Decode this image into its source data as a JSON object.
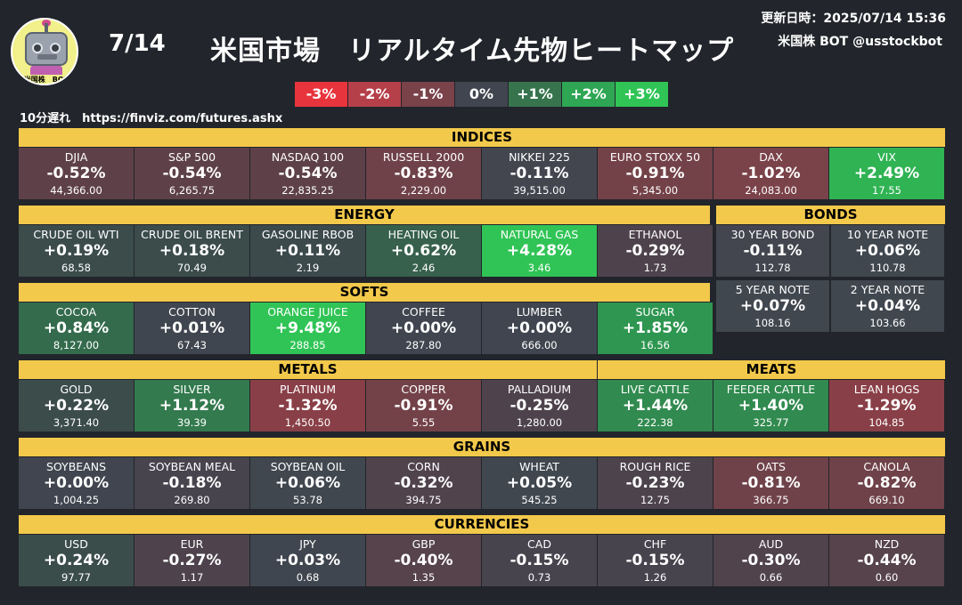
{
  "header": {
    "date": "7/14",
    "title": "米国市場　リアルタイム先物ヒートマップ",
    "updated": "更新日時：2025/07/14 15:36",
    "account": "米国株 BOT @usstockbot",
    "delay_note": "10分遅れ　https://finviz.com/futures.ashx",
    "logo_text": "米国株　BOT"
  },
  "legend": [
    {
      "label": "-3%",
      "color": "#e8343c"
    },
    {
      "label": "-2%",
      "color": "#b5404a"
    },
    {
      "label": "-1%",
      "color": "#7a4249"
    },
    {
      "label": "0%",
      "color": "#40454f"
    },
    {
      "label": "+1%",
      "color": "#37744e"
    },
    {
      "label": "+2%",
      "color": "#2ea653"
    },
    {
      "label": "+3%",
      "color": "#30c456"
    }
  ],
  "sections": {
    "indices": {
      "title": "INDICES",
      "items": [
        {
          "name": "DJIA",
          "change": "-0.52%",
          "price": "44,366.00",
          "color": "#5e4148"
        },
        {
          "name": "S&P 500",
          "change": "-0.54%",
          "price": "6,265.75",
          "color": "#5e4148"
        },
        {
          "name": "NASDAQ 100",
          "change": "-0.54%",
          "price": "22,835.25",
          "color": "#5e4148"
        },
        {
          "name": "RUSSELL 2000",
          "change": "-0.83%",
          "price": "2,229.00",
          "color": "#6f4249"
        },
        {
          "name": "NIKKEI 225",
          "change": "-0.11%",
          "price": "39,515.00",
          "color": "#43454f"
        },
        {
          "name": "EURO STOXX 50",
          "change": "-0.91%",
          "price": "5,345.00",
          "color": "#734248"
        },
        {
          "name": "DAX",
          "change": "-1.02%",
          "price": "24,083.00",
          "color": "#7a4249"
        },
        {
          "name": "VIX",
          "change": "+2.49%",
          "price": "17.55",
          "color": "#2fb353"
        }
      ]
    },
    "energy": {
      "title": "ENERGY",
      "items": [
        {
          "name": "CRUDE OIL WTI",
          "change": "+0.19%",
          "price": "68.58",
          "color": "#3b4c4b"
        },
        {
          "name": "CRUDE OIL BRENT",
          "change": "+0.18%",
          "price": "70.49",
          "color": "#3b4c4b"
        },
        {
          "name": "GASOLINE RBOB",
          "change": "+0.11%",
          "price": "2.19",
          "color": "#3c4a4c"
        },
        {
          "name": "HEATING OIL",
          "change": "+0.62%",
          "price": "2.46",
          "color": "#37604d"
        },
        {
          "name": "NATURAL GAS",
          "change": "+4.28%",
          "price": "3.46",
          "color": "#30c456"
        },
        {
          "name": "ETHANOL",
          "change": "-0.29%",
          "price": "1.73",
          "color": "#4e434c"
        }
      ]
    },
    "bonds": {
      "title": "BONDS",
      "items": [
        {
          "name": "30 YEAR BOND",
          "change": "-0.11%",
          "price": "112.78",
          "color": "#43454f"
        },
        {
          "name": "10 YEAR NOTE",
          "change": "+0.06%",
          "price": "110.78",
          "color": "#40474f"
        },
        {
          "name": "5 YEAR NOTE",
          "change": "+0.07%",
          "price": "108.16",
          "color": "#40474f"
        },
        {
          "name": "2 YEAR NOTE",
          "change": "+0.04%",
          "price": "103.66",
          "color": "#40474f"
        }
      ]
    },
    "softs": {
      "title": "SOFTS",
      "items": [
        {
          "name": "COCOA",
          "change": "+0.84%",
          "price": "8,127.00",
          "color": "#346b4d"
        },
        {
          "name": "COTTON",
          "change": "+0.01%",
          "price": "67.43",
          "color": "#40464f"
        },
        {
          "name": "ORANGE JUICE",
          "change": "+9.48%",
          "price": "288.85",
          "color": "#30c456"
        },
        {
          "name": "COFFEE",
          "change": "+0.00%",
          "price": "287.80",
          "color": "#40454f"
        },
        {
          "name": "LUMBER",
          "change": "+0.00%",
          "price": "666.00",
          "color": "#40454f"
        },
        {
          "name": "SUGAR",
          "change": "+1.85%",
          "price": "16.56",
          "color": "#2e9650"
        }
      ]
    },
    "metals": {
      "title": "METALS",
      "items": [
        {
          "name": "GOLD",
          "change": "+0.22%",
          "price": "3,371.40",
          "color": "#3b4c4b"
        },
        {
          "name": "SILVER",
          "change": "+1.12%",
          "price": "39.39",
          "color": "#337a4e"
        },
        {
          "name": "PLATINUM",
          "change": "-1.32%",
          "price": "1,450.50",
          "color": "#893f47"
        },
        {
          "name": "COPPER",
          "change": "-0.91%",
          "price": "5.55",
          "color": "#734248"
        },
        {
          "name": "PALLADIUM",
          "change": "-0.25%",
          "price": "1,280.00",
          "color": "#4e434c"
        }
      ]
    },
    "meats": {
      "title": "MEATS",
      "items": [
        {
          "name": "LIVE CATTLE",
          "change": "+1.44%",
          "price": "222.38",
          "color": "#318a4f"
        },
        {
          "name": "FEEDER CATTLE",
          "change": "+1.40%",
          "price": "325.77",
          "color": "#318a4f"
        },
        {
          "name": "LEAN HOGS",
          "change": "-1.29%",
          "price": "104.85",
          "color": "#893f47"
        }
      ]
    },
    "grains": {
      "title": "GRAINS",
      "items": [
        {
          "name": "SOYBEANS",
          "change": "+0.00%",
          "price": "1,004.25",
          "color": "#40454f"
        },
        {
          "name": "SOYBEAN MEAL",
          "change": "-0.18%",
          "price": "269.80",
          "color": "#47444e"
        },
        {
          "name": "SOYBEAN OIL",
          "change": "+0.06%",
          "price": "53.78",
          "color": "#40474f"
        },
        {
          "name": "CORN",
          "change": "-0.32%",
          "price": "394.75",
          "color": "#50434c"
        },
        {
          "name": "WHEAT",
          "change": "+0.05%",
          "price": "545.25",
          "color": "#40474f"
        },
        {
          "name": "ROUGH RICE",
          "change": "-0.23%",
          "price": "12.75",
          "color": "#4c434c"
        },
        {
          "name": "OATS",
          "change": "-0.81%",
          "price": "366.75",
          "color": "#6f4249"
        },
        {
          "name": "CANOLA",
          "change": "-0.82%",
          "price": "669.10",
          "color": "#6f4249"
        }
      ]
    },
    "currencies": {
      "title": "CURRENCIES",
      "items": [
        {
          "name": "USD",
          "change": "+0.24%",
          "price": "97.77",
          "color": "#3b4d4b"
        },
        {
          "name": "EUR",
          "change": "-0.27%",
          "price": "1.17",
          "color": "#4e434c"
        },
        {
          "name": "JPY",
          "change": "+0.03%",
          "price": "0.68",
          "color": "#40464f"
        },
        {
          "name": "GBP",
          "change": "-0.40%",
          "price": "1.35",
          "color": "#56434b"
        },
        {
          "name": "CAD",
          "change": "-0.15%",
          "price": "0.73",
          "color": "#47444e"
        },
        {
          "name": "CHF",
          "change": "-0.15%",
          "price": "1.26",
          "color": "#47444e"
        },
        {
          "name": "AUD",
          "change": "-0.30%",
          "price": "0.66",
          "color": "#50434c"
        },
        {
          "name": "NZD",
          "change": "-0.44%",
          "price": "0.60",
          "color": "#57434b"
        }
      ]
    }
  }
}
